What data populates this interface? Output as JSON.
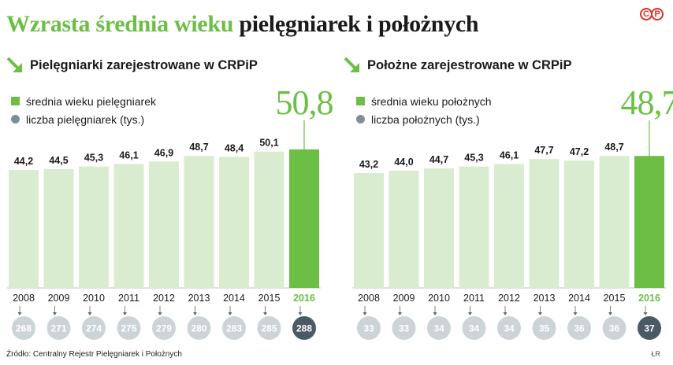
{
  "headline": {
    "part1": "Wzrasta średnia wieku",
    "part2": "pielęgniarek i położnych"
  },
  "logo": {
    "c": "C",
    "p": "P"
  },
  "colors": {
    "green": "#6cbe45",
    "light_green": "#d9ecd0",
    "grey": "#7d8e96",
    "light_grey": "#ccd4d8",
    "dark_grey": "#4a5a62"
  },
  "source": "Źródło: Centralny Rejestr Pielęgniarek i Położnych",
  "credit": "ŁR",
  "chart_data": [
    {
      "type": "bar",
      "title": "Pielęgniarki zarejestrowane w CRPiP",
      "legend": [
        "średnia wieku pielęgniarek",
        "liczba pielęgniarek (tys.)"
      ],
      "categories": [
        "2008",
        "2009",
        "2010",
        "2011",
        "2012",
        "2013",
        "2014",
        "2015",
        "2016"
      ],
      "value_labels": [
        "44,2",
        "44,5",
        "45,3",
        "46,1",
        "46,9",
        "48,7",
        "48,4",
        "50,1",
        "50,8"
      ],
      "values": [
        44.2,
        44.5,
        45.3,
        46.1,
        46.9,
        48.7,
        48.4,
        50.1,
        50.8
      ],
      "counts": [
        268,
        271,
        274,
        275,
        279,
        280,
        283,
        285,
        288
      ],
      "highlight_index": 8
    },
    {
      "type": "bar",
      "title": "Położne zarejestrowane w CRPiP",
      "legend": [
        "średnia wieku położnych",
        "liczba położnych (tys.)"
      ],
      "categories": [
        "2008",
        "2009",
        "2010",
        "2011",
        "2012",
        "2013",
        "2014",
        "2015",
        "2016"
      ],
      "value_labels": [
        "43,2",
        "44,0",
        "44,7",
        "45,3",
        "46,1",
        "47,7",
        "47,2",
        "48,7",
        "48,7"
      ],
      "values": [
        43.2,
        44.0,
        44.7,
        45.3,
        46.1,
        47.7,
        47.2,
        48.7,
        48.7
      ],
      "counts": [
        33,
        33,
        34,
        34,
        34,
        35,
        36,
        36,
        37
      ],
      "highlight_index": 8
    }
  ]
}
